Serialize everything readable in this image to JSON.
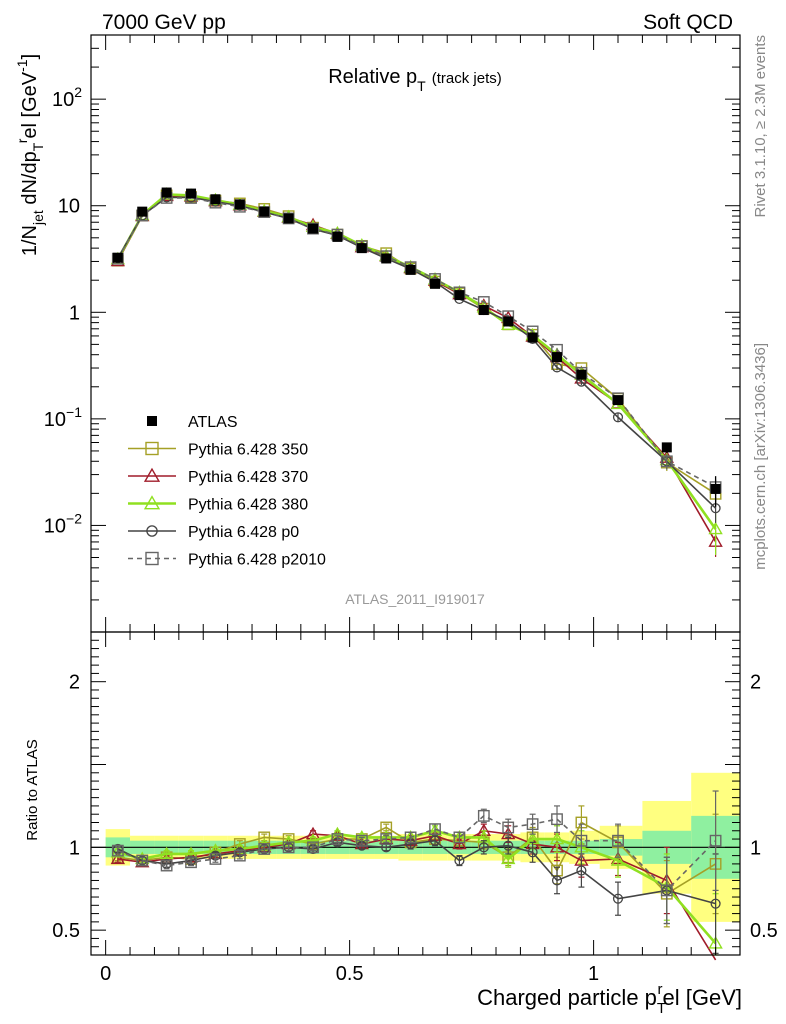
{
  "header": {
    "left": "7000 GeV pp",
    "right": "Soft QCD"
  },
  "side": {
    "rivet": "Rivet 3.1.10, ≥ 2.3M events",
    "mcplots": "mcplots.cern.ch [arXiv:1306.3436]"
  },
  "chart_data": {
    "type": "line",
    "title": "Relative p_T (track jets)",
    "title_main": "Relative p",
    "title_sub": "T",
    "title_note": "(track jets)",
    "analysis_label": "ATLAS_2011_I919017",
    "xlabel": "Charged particle p_T^rel [GeV]",
    "xlabel_main": "Charged particle p",
    "xlabel_sub": "T",
    "xlabel_sup": "r",
    "xlabel_tail": "el [GeV]",
    "ylabel": "1/N_jet dN/dp_T^rel [GeV^-1]",
    "ylabel_parts": {
      "a": "1/N",
      "a_sub": "jet",
      "b": " dN/dp",
      "b_sub": "T",
      "b_sup": "r",
      "c": "el [GeV",
      "c_sup": "-1",
      "d": "]"
    },
    "ratio_ylabel": "Ratio to ATLAS",
    "xlim": [
      -0.03,
      1.3
    ],
    "ylim_log": [
      0.001,
      400
    ],
    "ratio_ylim": [
      0.35,
      2.3
    ],
    "y_scale": "log",
    "x_ticks": [
      "0",
      "0.5",
      "1"
    ],
    "y_ticks": [
      {
        "value": 0.01,
        "base": "10",
        "exp": "−2"
      },
      {
        "value": 0.1,
        "base": "10",
        "exp": "−1"
      },
      {
        "value": 1,
        "base": "1",
        "exp": ""
      },
      {
        "value": 10,
        "base": "10",
        "exp": ""
      },
      {
        "value": 100,
        "base": "10",
        "exp": "2"
      }
    ],
    "ratio_ticks": [
      "0.5",
      "1",
      "2"
    ],
    "legend_position": "lower-left",
    "x": [
      0.025,
      0.075,
      0.125,
      0.175,
      0.225,
      0.275,
      0.325,
      0.375,
      0.425,
      0.475,
      0.525,
      0.575,
      0.625,
      0.675,
      0.725,
      0.775,
      0.825,
      0.875,
      0.925,
      0.975,
      1.05,
      1.15,
      1.25
    ],
    "atlas": {
      "name": "ATLAS",
      "values": [
        3.25,
        8.8,
        13.3,
        13.0,
        11.5,
        10.3,
        8.8,
        7.6,
        6.1,
        5.1,
        4.0,
        3.2,
        2.5,
        1.85,
        1.45,
        1.05,
        0.82,
        0.58,
        0.38,
        0.26,
        0.15,
        0.054,
        0.022
      ],
      "errors": [
        0.05,
        0.2,
        0.3,
        0.3,
        0.2,
        0.2,
        0.2,
        0.2,
        0.1,
        0.1,
        0.1,
        0.1,
        0.05,
        0.05,
        0.04,
        0.03,
        0.03,
        0.02,
        0.02,
        0.02,
        0.01,
        0.006,
        0.007
      ],
      "band_inner": [
        0.06,
        0.04,
        0.04,
        0.04,
        0.04,
        0.04,
        0.04,
        0.04,
        0.04,
        0.04,
        0.04,
        0.04,
        0.04,
        0.04,
        0.04,
        0.04,
        0.04,
        0.04,
        0.04,
        0.04,
        0.05,
        0.1,
        0.19
      ],
      "band_outer": [
        0.11,
        0.07,
        0.07,
        0.07,
        0.07,
        0.07,
        0.07,
        0.07,
        0.07,
        0.07,
        0.07,
        0.07,
        0.08,
        0.08,
        0.08,
        0.08,
        0.08,
        0.09,
        0.09,
        0.1,
        0.13,
        0.28,
        0.45
      ]
    },
    "colors": {
      "atlas": "#000000",
      "band_inner": "#8ff0a0",
      "band_outer": "#ffff80",
      "label_gray": "#999999",
      "side_gray": "#888888"
    },
    "series": [
      {
        "name": "Pythia 6.428 350",
        "color": "#a5a026",
        "marker": "square",
        "dash": false,
        "ratio": [
          0.94,
          0.92,
          0.94,
          0.93,
          0.97,
          1.02,
          1.06,
          1.05,
          1.02,
          1.05,
          1.05,
          1.12,
          1.03,
          1.05,
          1.04,
          1.03,
          0.94,
          1.06,
          0.86,
          1.15,
          1.03,
          0.72,
          0.9
        ],
        "ratio_err": [
          0.02,
          0.02,
          0.02,
          0.02,
          0.02,
          0.02,
          0.02,
          0.02,
          0.02,
          0.02,
          0.02,
          0.02,
          0.03,
          0.03,
          0.03,
          0.04,
          0.05,
          0.06,
          0.08,
          0.1,
          0.1,
          0.2,
          0.3
        ]
      },
      {
        "name": "Pythia 6.428 370",
        "color": "#a01c2a",
        "marker": "triangle",
        "dash": false,
        "ratio": [
          0.93,
          0.91,
          0.93,
          0.94,
          0.96,
          0.98,
          1.0,
          1.02,
          1.08,
          1.07,
          1.02,
          1.05,
          1.04,
          1.07,
          1.02,
          1.1,
          1.08,
          1.02,
          1.0,
          0.92,
          0.93,
          0.8,
          0.32
        ],
        "ratio_err": [
          0.02,
          0.02,
          0.02,
          0.02,
          0.02,
          0.02,
          0.02,
          0.02,
          0.02,
          0.02,
          0.02,
          0.02,
          0.03,
          0.03,
          0.03,
          0.04,
          0.05,
          0.06,
          0.08,
          0.1,
          0.1,
          0.2,
          0.15
        ]
      },
      {
        "name": "Pythia 6.428 380",
        "color": "#90e020",
        "marker": "triangle",
        "dash": false,
        "ratio": [
          0.97,
          0.93,
          0.96,
          0.96,
          0.98,
          0.99,
          1.01,
          1.03,
          1.04,
          1.08,
          1.06,
          1.06,
          1.06,
          1.1,
          1.06,
          1.06,
          0.93,
          1.05,
          1.05,
          1.0,
          0.92,
          0.76,
          0.42
        ],
        "ratio_err": [
          0.02,
          0.02,
          0.02,
          0.02,
          0.02,
          0.02,
          0.02,
          0.02,
          0.02,
          0.02,
          0.02,
          0.02,
          0.03,
          0.03,
          0.03,
          0.04,
          0.05,
          0.06,
          0.08,
          0.1,
          0.1,
          0.2,
          0.3
        ]
      },
      {
        "name": "Pythia 6.428 p0",
        "color": "#444444",
        "marker": "circle",
        "dash": false,
        "ratio": [
          0.99,
          0.92,
          0.9,
          0.92,
          0.95,
          0.97,
          0.99,
          1.0,
          0.99,
          1.03,
          1.01,
          1.0,
          1.02,
          1.04,
          0.92,
          1.0,
          1.01,
          0.97,
          0.8,
          0.86,
          0.69,
          0.74,
          0.66
        ],
        "ratio_err": [
          0.02,
          0.02,
          0.02,
          0.02,
          0.02,
          0.02,
          0.02,
          0.02,
          0.02,
          0.02,
          0.02,
          0.02,
          0.03,
          0.03,
          0.03,
          0.04,
          0.05,
          0.06,
          0.08,
          0.1,
          0.1,
          0.2,
          0.3
        ]
      },
      {
        "name": "Pythia 6.428 p2010",
        "color": "#666666",
        "marker": "square",
        "dash": true,
        "ratio": [
          0.98,
          0.92,
          0.89,
          0.91,
          0.93,
          0.95,
          0.99,
          1.0,
          1.0,
          1.05,
          1.04,
          1.05,
          1.06,
          1.11,
          1.06,
          1.19,
          1.12,
          1.14,
          1.17,
          1.04,
          1.04,
          0.74,
          1.04
        ],
        "ratio_err": [
          0.02,
          0.02,
          0.02,
          0.02,
          0.02,
          0.02,
          0.02,
          0.02,
          0.02,
          0.02,
          0.02,
          0.02,
          0.03,
          0.03,
          0.03,
          0.04,
          0.05,
          0.06,
          0.08,
          0.1,
          0.1,
          0.2,
          0.3
        ]
      }
    ]
  }
}
